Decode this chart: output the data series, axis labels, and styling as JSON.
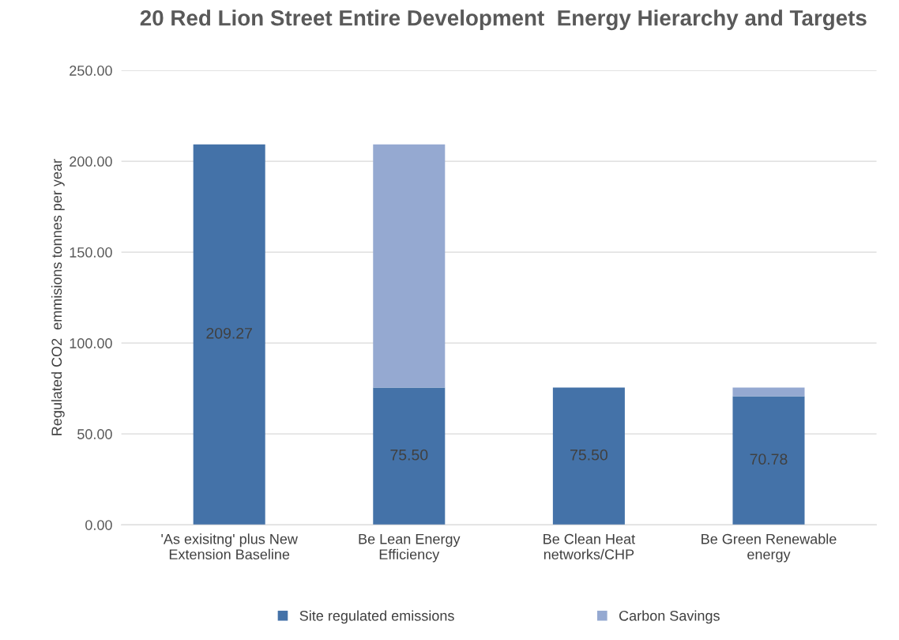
{
  "chart_data": {
    "type": "bar",
    "title": "20 Red Lion Street Entire Development  Energy Hierarchy and Targets",
    "ylabel": "Regulated CO2  emmisions tonnes per year",
    "categories": [
      "'As exisitng' plus New\nExtension Baseline",
      "Be Lean Energy\nEfficiency",
      "Be Clean Heat\nnetworks/CHP",
      "Be Green Renewable\nenergy"
    ],
    "stacked": true,
    "series": [
      {
        "name": "Site regulated emissions",
        "color": "#4472a8",
        "values": [
          209.27,
          75.5,
          75.5,
          70.78
        ],
        "value_labels": [
          "209.27",
          "75.50",
          "75.50",
          "70.78"
        ]
      },
      {
        "name": "Carbon Savings",
        "color": "#95a9d1",
        "values": [
          0,
          133.77,
          0,
          4.72
        ]
      }
    ],
    "ylim": [
      0,
      250
    ],
    "yticks": [
      {
        "value": 0,
        "label": "0.00"
      },
      {
        "value": 50,
        "label": "50.00"
      },
      {
        "value": 100,
        "label": "100.00"
      },
      {
        "value": 150,
        "label": "150.00"
      },
      {
        "value": 200,
        "label": "200.00"
      },
      {
        "value": 250,
        "label": "250.00"
      }
    ],
    "grid": "y",
    "legend": "bottom"
  }
}
